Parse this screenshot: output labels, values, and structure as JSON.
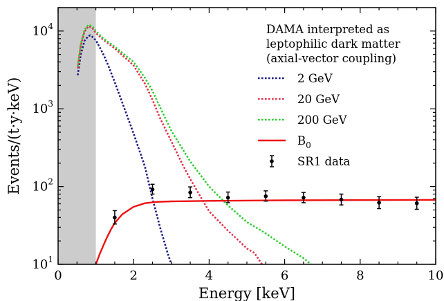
{
  "chart_data": {
    "type": "line",
    "xlabel": "Energy [keV]",
    "ylabel": "Events/(t·y·keV)",
    "xlim": [
      0,
      10
    ],
    "ylim": [
      10,
      20000
    ],
    "yscale": "log",
    "x_ticks": [
      0,
      2,
      4,
      6,
      8,
      10
    ],
    "y_ticks": [
      {
        "value": 10,
        "base": "10",
        "exp": "1"
      },
      {
        "value": 100,
        "base": "10",
        "exp": "2"
      },
      {
        "value": 1000,
        "base": "10",
        "exp": "3"
      },
      {
        "value": 10000,
        "base": "10",
        "exp": "4"
      }
    ],
    "shaded_region": {
      "x": [
        0,
        1
      ],
      "color": "#cccccc"
    },
    "legend": {
      "placement": "top-right",
      "title": [
        "DAMA interpreted as",
        "leptophilic dark matter",
        "(axial-vector coupling)"
      ]
    },
    "series": [
      {
        "name": "2 GeV",
        "style": "dotted",
        "color": "#1a1a80",
        "x": [
          0.52,
          0.6,
          0.7,
          0.8,
          0.85,
          0.9,
          1.0,
          1.1,
          1.2,
          1.3,
          1.5,
          1.7,
          2.0,
          2.3,
          2.5,
          2.7,
          2.9,
          3.0
        ],
        "y": [
          2700,
          5000,
          7500,
          8600,
          8800,
          8500,
          7600,
          6200,
          5000,
          3900,
          2200,
          1200,
          480,
          180,
          70,
          30,
          14,
          10
        ]
      },
      {
        "name": "20 GeV",
        "style": "dotted",
        "color": "#e0344e",
        "x": [
          0.52,
          0.6,
          0.7,
          0.8,
          0.9,
          1.0,
          1.2,
          1.5,
          2.0,
          2.3,
          2.5,
          2.7,
          3.0,
          3.3,
          3.5,
          3.8,
          4.0,
          4.3,
          4.5,
          4.7,
          5.0,
          5.2,
          5.4
        ],
        "y": [
          3300,
          6500,
          9800,
          11500,
          11000,
          9400,
          7700,
          6000,
          3600,
          2100,
          1300,
          760,
          380,
          190,
          125,
          70,
          48,
          34,
          27,
          22,
          16,
          14,
          10
        ]
      },
      {
        "name": "200 GeV",
        "style": "dotted",
        "color": "#33cc33",
        "x": [
          0.52,
          0.6,
          0.7,
          0.8,
          0.9,
          1.0,
          1.2,
          1.5,
          2.0,
          2.3,
          2.5,
          2.7,
          3.0,
          3.5,
          4.0,
          4.5,
          5.0,
          5.5,
          6.0,
          6.5,
          6.7
        ],
        "y": [
          3500,
          6800,
          10300,
          12000,
          11600,
          10000,
          8000,
          6300,
          4000,
          2500,
          1700,
          1050,
          520,
          210,
          100,
          57,
          35,
          25,
          17,
          12,
          10
        ]
      },
      {
        "name": "B",
        "name_sub": "0",
        "style": "solid",
        "color": "#ee1111",
        "x": [
          1.0,
          1.1,
          1.2,
          1.3,
          1.4,
          1.5,
          1.7,
          2.0,
          2.3,
          2.6,
          3.0,
          4.0,
          6.0,
          8.0,
          10.0
        ],
        "y": [
          10,
          13.5,
          17.5,
          22.5,
          28,
          34,
          44,
          55,
          61,
          63.5,
          64.5,
          65.5,
          66.5,
          67,
          67.5
        ]
      }
    ],
    "data_points": {
      "name": "SR1 data",
      "color": "#000000",
      "x": [
        1.5,
        2.5,
        3.5,
        4.5,
        5.5,
        6.5,
        7.5,
        8.5,
        9.5
      ],
      "y": [
        40,
        92,
        84,
        72,
        75,
        72,
        68,
        62,
        61
      ],
      "yerr_low": [
        7,
        12,
        12,
        10,
        10,
        10,
        10,
        10,
        10
      ],
      "yerr_high": [
        9,
        15,
        15,
        13,
        13,
        12,
        12,
        12,
        12
      ]
    }
  }
}
